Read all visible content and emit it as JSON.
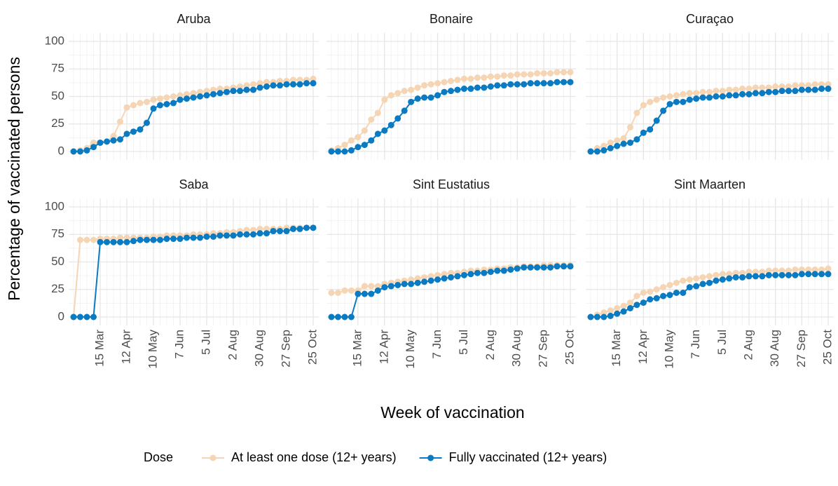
{
  "chart_data": {
    "type": "line",
    "x_label": "Week of vaccination",
    "y_label": "Percentage of vaccinated persons",
    "categories": [
      null,
      null,
      null,
      null,
      "15 Mar",
      null,
      null,
      null,
      "12 Apr",
      null,
      null,
      null,
      "10 May",
      null,
      null,
      null,
      "7 Jun",
      null,
      null,
      null,
      "5 Jul",
      null,
      null,
      null,
      "2 Aug",
      null,
      null,
      null,
      "30 Aug",
      null,
      null,
      null,
      "27 Sep",
      null,
      null,
      null,
      "25 Oct"
    ],
    "ylim": [
      0,
      100
    ],
    "yticks": [
      0,
      25,
      50,
      75,
      100
    ],
    "grid": true,
    "legend": {
      "title": "Dose",
      "position": "bottom",
      "series": [
        {
          "name": "At least one dose (12+ years)",
          "color": "#f5d5b3"
        },
        {
          "name": "Fully vaccinated (12+ years)",
          "color": "#0a7bc2"
        }
      ]
    },
    "panels": [
      {
        "title": "Aruba",
        "series": [
          {
            "values": [
              0,
              1,
              3,
              8,
              8,
              9,
              14,
              27,
              40,
              42,
              44,
              45,
              47,
              48,
              49,
              50,
              51,
              52,
              53,
              54,
              55,
              56,
              57,
              57,
              58,
              59,
              60,
              61,
              62,
              63,
              63,
              64,
              64,
              65,
              65,
              65,
              66
            ]
          },
          {
            "values": [
              0,
              0,
              1,
              4,
              8,
              9,
              10,
              11,
              16,
              18,
              20,
              26,
              39,
              42,
              43,
              44,
              47,
              48,
              49,
              50,
              51,
              52,
              53,
              54,
              55,
              55,
              56,
              56,
              58,
              59,
              60,
              60,
              61,
              61,
              61,
              62,
              62
            ]
          }
        ]
      },
      {
        "title": "Bonaire",
        "series": [
          {
            "values": [
              1,
              3,
              6,
              10,
              13,
              19,
              29,
              35,
              47,
              51,
              53,
              55,
              56,
              58,
              60,
              61,
              62,
              63,
              64,
              65,
              66,
              66,
              67,
              67,
              68,
              68,
              69,
              69,
              70,
              70,
              70,
              71,
              71,
              71,
              72,
              72,
              72
            ]
          },
          {
            "values": [
              0,
              0,
              0,
              1,
              4,
              6,
              10,
              16,
              19,
              24,
              30,
              37,
              45,
              48,
              49,
              49,
              51,
              54,
              55,
              56,
              57,
              57,
              58,
              58,
              59,
              60,
              60,
              61,
              61,
              61,
              62,
              62,
              62,
              62,
              63,
              63,
              63
            ]
          }
        ]
      },
      {
        "title": "Curaçao",
        "series": [
          {
            "values": [
              0,
              3,
              5,
              8,
              10,
              12,
              22,
              35,
              42,
              45,
              47,
              49,
              50,
              51,
              52,
              53,
              53,
              54,
              54,
              55,
              55,
              56,
              56,
              57,
              57,
              58,
              58,
              58,
              59,
              59,
              59,
              60,
              60,
              60,
              61,
              61,
              61
            ]
          },
          {
            "values": [
              0,
              0,
              1,
              3,
              5,
              7,
              8,
              11,
              17,
              20,
              28,
              37,
              43,
              45,
              45,
              47,
              48,
              49,
              49,
              50,
              50,
              51,
              51,
              52,
              52,
              53,
              53,
              54,
              54,
              55,
              55,
              55,
              56,
              56,
              56,
              57,
              57
            ]
          }
        ]
      },
      {
        "title": "Saba",
        "series": [
          {
            "values": [
              0,
              70,
              70,
              70,
              71,
              71,
              71,
              72,
              72,
              72,
              72,
              72,
              73,
              73,
              74,
              74,
              74,
              74,
              75,
              75,
              75,
              76,
              76,
              77,
              77,
              78,
              79,
              79,
              80,
              80,
              80,
              80,
              81,
              81,
              81,
              81,
              81
            ]
          },
          {
            "values": [
              0,
              0,
              0,
              0,
              68,
              68,
              68,
              68,
              68,
              69,
              70,
              70,
              70,
              70,
              71,
              71,
              71,
              72,
              72,
              72,
              73,
              73,
              74,
              74,
              74,
              75,
              75,
              75,
              76,
              76,
              78,
              78,
              78,
              80,
              80,
              81,
              81
            ]
          }
        ]
      },
      {
        "title": "Sint Eustatius",
        "series": [
          {
            "values": [
              22,
              22,
              24,
              24,
              24,
              28,
              28,
              28,
              30,
              31,
              32,
              33,
              34,
              35,
              36,
              37,
              38,
              39,
              40,
              40,
              41,
              42,
              42,
              43,
              43,
              44,
              44,
              45,
              45,
              46,
              46,
              46,
              47,
              47,
              47,
              47,
              47
            ]
          },
          {
            "values": [
              0,
              0,
              0,
              0,
              21,
              21,
              21,
              24,
              27,
              28,
              29,
              30,
              30,
              31,
              32,
              33,
              34,
              35,
              36,
              37,
              38,
              39,
              40,
              40,
              41,
              42,
              42,
              43,
              44,
              45,
              45,
              45,
              45,
              45,
              46,
              46,
              46
            ]
          }
        ]
      },
      {
        "title": "Sint Maarten",
        "series": [
          {
            "values": [
              0,
              2,
              4,
              6,
              8,
              10,
              13,
              19,
              22,
              23,
              25,
              27,
              29,
              31,
              33,
              34,
              35,
              36,
              37,
              38,
              39,
              39,
              40,
              40,
              41,
              41,
              41,
              42,
              42,
              42,
              42,
              43,
              43,
              43,
              43,
              43,
              44
            ]
          },
          {
            "values": [
              0,
              0,
              0,
              1,
              3,
              5,
              8,
              11,
              13,
              16,
              17,
              19,
              20,
              22,
              22,
              27,
              28,
              30,
              31,
              33,
              34,
              35,
              36,
              36,
              37,
              37,
              37,
              38,
              38,
              38,
              38,
              38,
              39,
              39,
              39,
              39,
              39
            ]
          }
        ]
      }
    ]
  }
}
